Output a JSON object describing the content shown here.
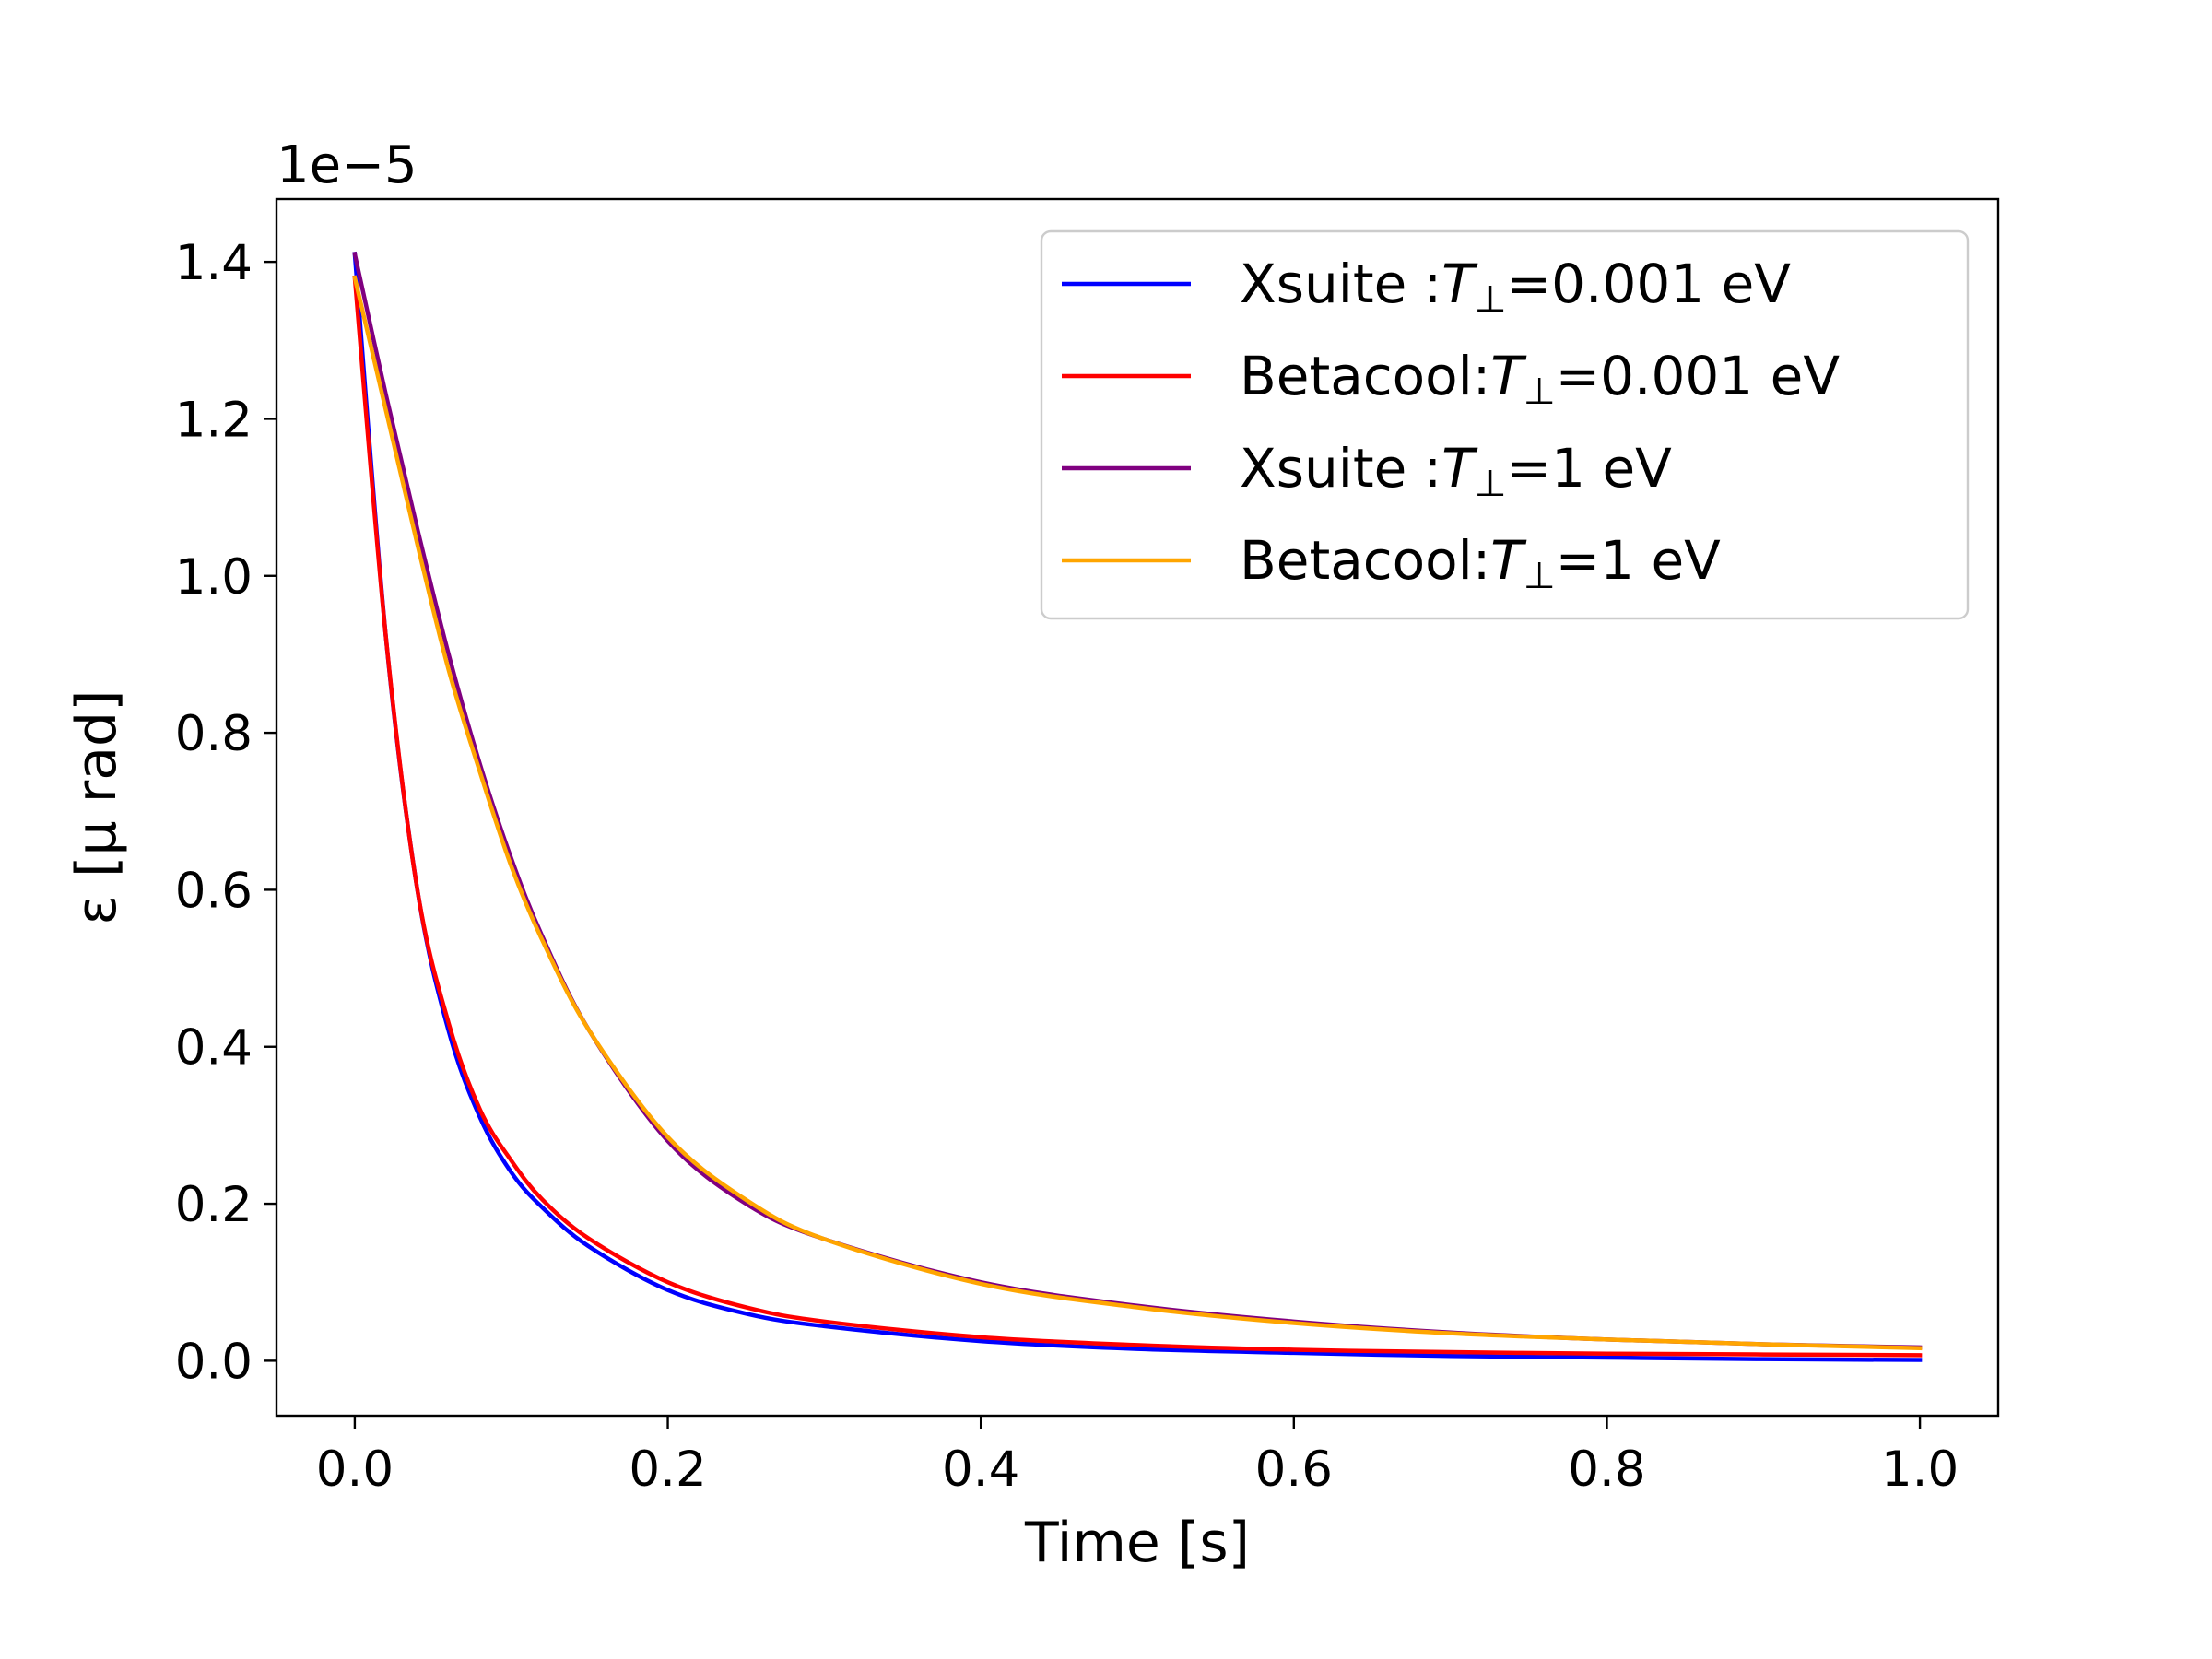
{
  "chart_data": {
    "type": "line",
    "xlabel": "Time [s]",
    "ylabel": "ε [μ rad]",
    "y_offset_label": "1e−5",
    "xlim": [
      -0.05,
      1.05
    ],
    "ylim": [
      -0.07,
      1.48
    ],
    "x_ticks": [
      0.0,
      0.2,
      0.4,
      0.6,
      0.8,
      1.0
    ],
    "x_tick_labels": [
      "0.0",
      "0.2",
      "0.4",
      "0.6",
      "0.8",
      "1.0"
    ],
    "y_ticks": [
      0.0,
      0.2,
      0.4,
      0.6,
      0.8,
      1.0,
      1.2,
      1.4
    ],
    "y_tick_labels": [
      "0.0",
      "0.2",
      "0.4",
      "0.6",
      "0.8",
      "1.0",
      "1.2",
      "1.4"
    ],
    "grid": false,
    "legend_position": "top-right",
    "x": [
      0.0,
      0.02,
      0.04,
      0.06,
      0.08,
      0.1,
      0.12,
      0.15,
      0.2,
      0.25,
      0.3,
      0.4,
      0.5,
      0.6,
      0.7,
      0.8,
      0.9,
      1.0
    ],
    "series": [
      {
        "name": "Xsuite    :T⊥=0.001 eV",
        "label_prefix": "Xsuite    :",
        "label_suffix": "=0.001 eV",
        "color": "#0000ff",
        "values": [
          1.41,
          0.92,
          0.6,
          0.42,
          0.31,
          0.24,
          0.195,
          0.145,
          0.09,
          0.06,
          0.044,
          0.025,
          0.015,
          0.01,
          0.006,
          0.004,
          0.002,
          0.001
        ]
      },
      {
        "name": "Betacool:T⊥=0.001 eV",
        "label_prefix": "Betacool:",
        "label_suffix": "=0.001 eV",
        "color": "#ff0000",
        "values": [
          1.38,
          0.92,
          0.6,
          0.43,
          0.32,
          0.255,
          0.205,
          0.155,
          0.1,
          0.068,
          0.05,
          0.03,
          0.02,
          0.014,
          0.011,
          0.009,
          0.008,
          0.007
        ]
      },
      {
        "name": "Xsuite    :T⊥=1 eV",
        "label_prefix": "Xsuite    :",
        "label_suffix": "=1 eV",
        "color": "#800080",
        "values": [
          1.41,
          1.23,
          1.06,
          0.9,
          0.76,
          0.64,
          0.54,
          0.42,
          0.28,
          0.2,
          0.155,
          0.1,
          0.07,
          0.05,
          0.036,
          0.027,
          0.021,
          0.017
        ]
      },
      {
        "name": "Betacool:T⊥=1 eV",
        "label_prefix": "Betacool:",
        "label_suffix": "=1 eV",
        "color": "#ffa500",
        "values": [
          1.38,
          1.21,
          1.04,
          0.88,
          0.75,
          0.63,
          0.535,
          0.42,
          0.285,
          0.205,
          0.155,
          0.098,
          0.068,
          0.048,
          0.035,
          0.027,
          0.021,
          0.016
        ]
      }
    ]
  }
}
